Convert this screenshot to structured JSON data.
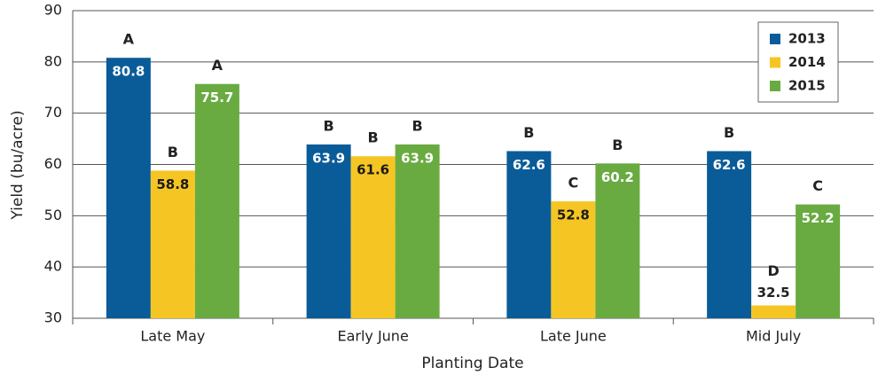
{
  "chart_data": {
    "type": "bar",
    "x_label": "Planting Date",
    "y_label": "Yield (bu/acre)",
    "categories": [
      "Late May",
      "Early June",
      "Late June",
      "Mid July"
    ],
    "series": [
      {
        "name": "2013",
        "color": "#0a5c99",
        "label_color": "#ffffff",
        "values": [
          80.8,
          63.9,
          62.6,
          62.6
        ],
        "significance": [
          "A",
          "B",
          "B",
          "B"
        ]
      },
      {
        "name": "2014",
        "color": "#f5c623",
        "label_color": "#1a1a1a",
        "values": [
          58.8,
          61.6,
          52.8,
          32.5
        ],
        "significance": [
          "B",
          "B",
          "C",
          "D"
        ]
      },
      {
        "name": "2015",
        "color": "#69ab41",
        "label_color": "#ffffff",
        "values": [
          75.7,
          63.9,
          60.2,
          52.2
        ],
        "significance": [
          "A",
          "B",
          "B",
          "C"
        ]
      }
    ],
    "ylim": [
      30,
      90
    ],
    "yticks": [
      30,
      40,
      50,
      60,
      70,
      80,
      90
    ],
    "grid": true,
    "legend": "upper right"
  }
}
